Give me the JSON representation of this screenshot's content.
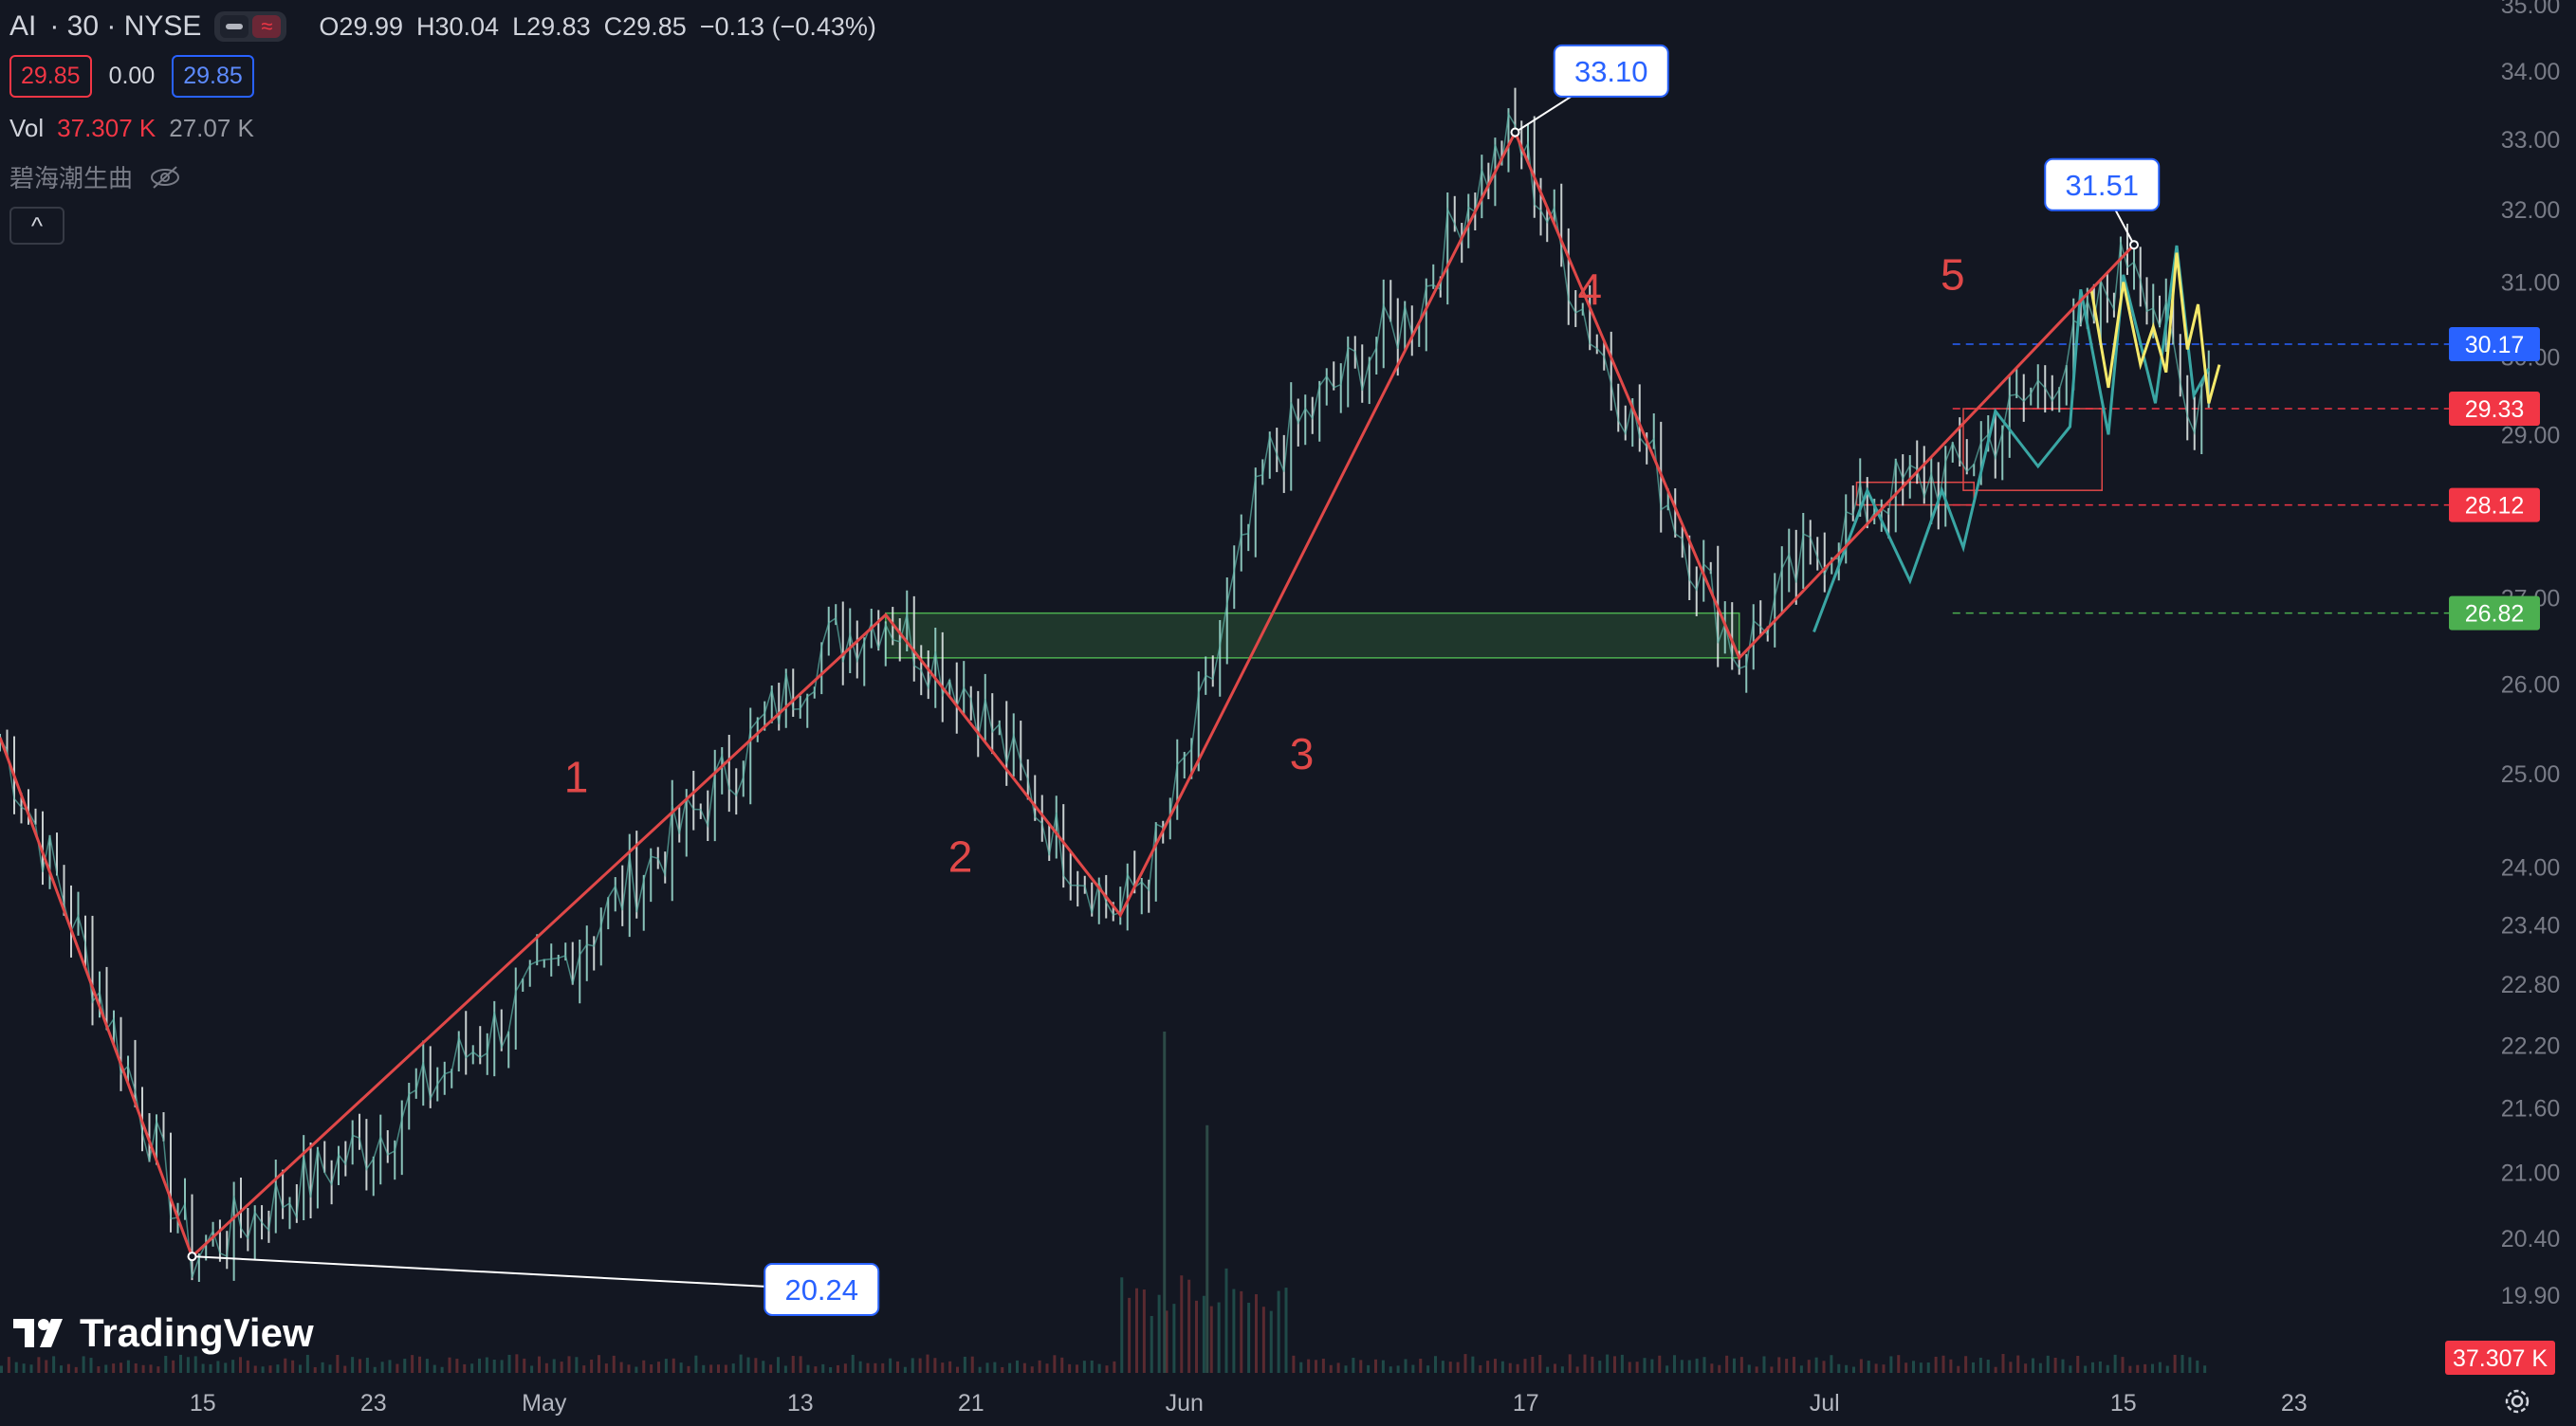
{
  "header": {
    "symbol": "AI",
    "interval_exchange": "· 30 · NYSE",
    "open": "O29.99",
    "high": "H30.04",
    "low": "L29.83",
    "close": "C29.85",
    "change": "−0.13 (−0.43%)",
    "sell_price": "29.85",
    "spread": "0.00",
    "buy_price": "29.85"
  },
  "volume_legend": {
    "label": "Vol",
    "value1": "37.307 K",
    "value2": "27.07 K"
  },
  "indicator_legend": {
    "name": "碧海潮生曲"
  },
  "collapse_label": "^",
  "logo": {
    "text": "TradingView"
  },
  "colors": {
    "background": "#131722",
    "zigzag": "#e04848",
    "wave_labels": "#e04848",
    "callout_text": "#2962ff",
    "green_zone": "#4caf50",
    "teal_line": "#3aa6a4",
    "yellow_line": "#f5e96b",
    "up_candle": "#26a69a",
    "down_candle": "#ef5350"
  },
  "chart_data": {
    "type": "line",
    "title": "",
    "symbol": "AI",
    "interval": "30",
    "exchange": "NYSE",
    "scale": "log",
    "ylim": [
      19.6,
      35.0
    ],
    "y_ticks": [
      "35.00",
      "34.00",
      "33.00",
      "32.00",
      "31.00",
      "30.00",
      "29.00",
      "27.00",
      "26.00",
      "25.00",
      "24.00",
      "23.40",
      "22.80",
      "22.20",
      "21.60",
      "21.00",
      "20.40",
      "19.90"
    ],
    "x_ticks": [
      "15",
      "23",
      "May",
      "13",
      "21",
      "Jun",
      "17",
      "Jul",
      "15",
      "23"
    ],
    "x_tick_days": [
      15,
      23,
      31,
      43,
      51,
      61,
      77,
      91,
      105,
      113
    ],
    "x_range_days": [
      5.5,
      117.5
    ],
    "series": [
      {
        "points": [
          {
            "day": 5.5,
            "value": 25.4
          },
          {
            "day": 14.5,
            "value": 20.24
          },
          {
            "day": 23,
            "value": 21.3
          },
          {
            "day": 31,
            "value": 22.8
          },
          {
            "day": 39,
            "value": 24.8
          },
          {
            "day": 44,
            "value": 26.4
          },
          {
            "day": 47,
            "value": 26.8
          },
          {
            "day": 51,
            "value": 25.9
          },
          {
            "day": 55,
            "value": 24.3
          },
          {
            "day": 58,
            "value": 23.5
          },
          {
            "day": 60,
            "value": 24.3
          },
          {
            "day": 62,
            "value": 25.8
          },
          {
            "day": 65,
            "value": 28.7
          },
          {
            "day": 68,
            "value": 29.6
          },
          {
            "day": 72,
            "value": 30.7
          },
          {
            "day": 74,
            "value": 32.0
          },
          {
            "day": 76.5,
            "value": 33.1
          },
          {
            "day": 78,
            "value": 31.9
          },
          {
            "day": 80,
            "value": 30.4
          },
          {
            "day": 83,
            "value": 28.6
          },
          {
            "day": 85,
            "value": 27.4
          },
          {
            "day": 87,
            "value": 26.3
          },
          {
            "day": 90,
            "value": 27.4
          },
          {
            "day": 94,
            "value": 28.3
          },
          {
            "day": 97,
            "value": 28.5
          },
          {
            "day": 100,
            "value": 29.3
          },
          {
            "day": 103,
            "value": 30.2
          },
          {
            "day": 105.5,
            "value": 31.51
          },
          {
            "day": 107,
            "value": 30.3
          },
          {
            "day": 108,
            "value": 29.2
          },
          {
            "day": 109,
            "value": 29.85
          }
        ]
      }
    ],
    "volume": [
      {
        "day": 60,
        "value": 37307
      },
      {
        "day": 62,
        "value": 27070
      }
    ],
    "callouts": [
      {
        "label": "33.10",
        "day": 76.5,
        "value": 33.1,
        "box_day": 81,
        "box_value": 34.0
      },
      {
        "label": "31.51",
        "day": 105.5,
        "value": 31.51,
        "box_day": 104,
        "box_value": 32.35
      },
      {
        "label": "20.24",
        "day": 14.5,
        "value": 20.24,
        "box_day": 44,
        "box_value": 19.95
      }
    ],
    "wave_labels": [
      {
        "label": "1",
        "day": 32.5,
        "value": 24.8
      },
      {
        "label": "2",
        "day": 50.5,
        "value": 23.95
      },
      {
        "label": "3",
        "day": 66.5,
        "value": 25.05
      },
      {
        "label": "4",
        "day": 80,
        "value": 30.7
      },
      {
        "label": "5",
        "day": 97,
        "value": 30.9
      }
    ],
    "zigzag": [
      {
        "day": 5.5,
        "value": 25.4
      },
      {
        "day": 14.5,
        "value": 20.24
      },
      {
        "day": 47,
        "value": 26.8
      },
      {
        "day": 58,
        "value": 23.5
      },
      {
        "day": 76.5,
        "value": 33.1
      },
      {
        "day": 87,
        "value": 26.3
      },
      {
        "day": 105.5,
        "value": 31.51
      }
    ],
    "green_zone": {
      "day_start": 47,
      "day_end": 87,
      "low": 26.3,
      "high": 26.82
    },
    "red_boxes": [
      {
        "day_start": 92.5,
        "day_end": 98,
        "low": 28.12,
        "high": 28.4
      },
      {
        "day_start": 97.5,
        "day_end": 104,
        "low": 28.3,
        "high": 29.33
      }
    ],
    "price_lines": [
      {
        "label": "30.17",
        "value": 30.17,
        "color": "#2962ff",
        "style": "dashed"
      },
      {
        "label": "29.33",
        "value": 29.33,
        "color": "#f23645",
        "style": "dashed"
      },
      {
        "label": "28.12",
        "value": 28.12,
        "color": "#f23645",
        "style": "dashed"
      },
      {
        "label": "26.82",
        "value": 26.82,
        "color": "#4caf50",
        "style": "dashed"
      }
    ],
    "volume_label": "37.307 K"
  }
}
